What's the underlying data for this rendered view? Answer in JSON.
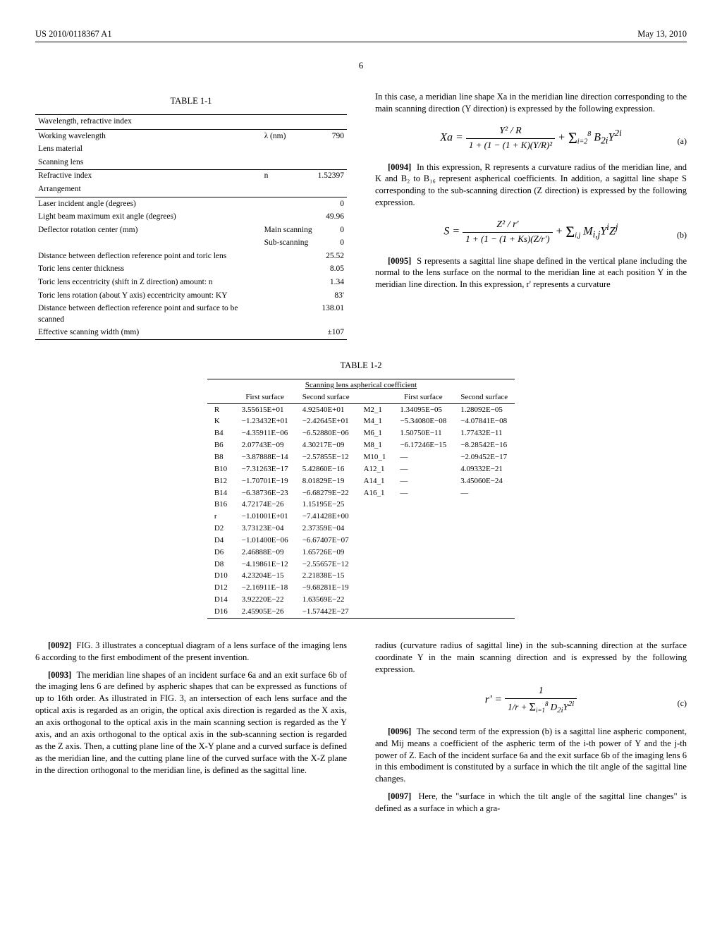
{
  "header": {
    "left": "US 2010/0118367 A1",
    "right": "May 13, 2010"
  },
  "page_number": "6",
  "table11": {
    "title": "TABLE 1-1",
    "section1_head": "Wavelength, refractive index",
    "rows1": [
      {
        "label": "Working wavelength",
        "sym": "λ (nm)",
        "val": "790"
      },
      {
        "label": "Lens material",
        "sym": "",
        "val": ""
      },
      {
        "label": "Scanning lens",
        "sym": "",
        "val": ""
      }
    ],
    "rows1b": [
      {
        "label": "Refractive index",
        "sym": "n",
        "val": "1.52397"
      }
    ],
    "section2_head": "Arrangement",
    "rows2": [
      {
        "label": "Laser incident angle (degrees)",
        "sym": "",
        "val": "0"
      },
      {
        "label": "Light beam maximum exit angle (degrees)",
        "sym": "",
        "val": "49.96"
      },
      {
        "label": "Deflector rotation center (mm)",
        "sym": "Main scanning",
        "val": "0"
      },
      {
        "label": "",
        "sym": "Sub-scanning",
        "val": "0"
      },
      {
        "label": "Distance between deflection reference point and toric lens",
        "sym": "",
        "val": "25.52"
      },
      {
        "label": "Toric lens center thickness",
        "sym": "",
        "val": "8.05"
      },
      {
        "label": "Toric lens eccentricity (shift in Z direction) amount: n",
        "sym": "",
        "val": "1.34"
      },
      {
        "label": "Toric lens rotation (about Y axis) eccentricity amount: KY",
        "sym": "",
        "val": "83'"
      },
      {
        "label": "Distance between deflection reference point and surface to be scanned",
        "sym": "",
        "val": "138.01"
      },
      {
        "label": "Effective scanning width (mm)",
        "sym": "",
        "val": "±107"
      }
    ]
  },
  "table12": {
    "title": "TABLE 1-2",
    "group_header": "Scanning lens aspherical coefficient",
    "col_headers": [
      "",
      "First surface",
      "Second surface",
      "",
      "First surface",
      "Second surface"
    ],
    "rows": [
      [
        "R",
        "3.55615E+01",
        "4.92540E+01",
        "M2_1",
        "1.34095E−05",
        "1.28092E−05"
      ],
      [
        "K",
        "−1.23432E+01",
        "−2.42645E+01",
        "M4_1",
        "−5.34080E−08",
        "−4.07841E−08"
      ],
      [
        "B4",
        "−4.35911E−06",
        "−6.52880E−06",
        "M6_1",
        "1.50750E−11",
        "1.77432E−11"
      ],
      [
        "B6",
        "2.07743E−09",
        "4.30217E−09",
        "M8_1",
        "−6.17246E−15",
        "−8.28542E−16"
      ],
      [
        "B8",
        "−3.87888E−14",
        "−2.57855E−12",
        "M10_1",
        "—",
        "−2.09452E−17"
      ],
      [
        "B10",
        "−7.31263E−17",
        "5.42860E−16",
        "A12_1",
        "—",
        "4.09332E−21"
      ],
      [
        "B12",
        "−1.70701E−19",
        "8.01829E−19",
        "A14_1",
        "—",
        "3.45060E−24"
      ],
      [
        "B14",
        "−6.38736E−23",
        "−6.68279E−22",
        "A16_1",
        "—",
        "—"
      ],
      [
        "B16",
        "4.72174E−26",
        "1.15195E−25",
        "",
        "",
        ""
      ],
      [
        "r",
        "−1.01001E+01",
        "−7.41428E+00",
        "",
        "",
        ""
      ],
      [
        "D2",
        "3.73123E−04",
        "2.37359E−04",
        "",
        "",
        ""
      ],
      [
        "D4",
        "−1.01400E−06",
        "−6.67407E−07",
        "",
        "",
        ""
      ],
      [
        "D6",
        "2.46888E−09",
        "1.65726E−09",
        "",
        "",
        ""
      ],
      [
        "D8",
        "−4.19861E−12",
        "−2.55657E−12",
        "",
        "",
        ""
      ],
      [
        "D10",
        "4.23204E−15",
        "2.21838E−15",
        "",
        "",
        ""
      ],
      [
        "D12",
        "−2.16911E−18",
        "−9.68281E−19",
        "",
        "",
        ""
      ],
      [
        "D14",
        "3.92220E−22",
        "1.63569E−22",
        "",
        "",
        ""
      ],
      [
        "D16",
        "2.45905E−26",
        "−1.57442E−27",
        "",
        "",
        ""
      ]
    ]
  },
  "paras": {
    "p0092": "FIG. 3 illustrates a conceptual diagram of a lens surface of the imaging lens 6 according to the first embodiment of the present invention.",
    "p0093": "The meridian line shapes of an incident surface 6a and an exit surface 6b of the imaging lens 6 are defined by aspheric shapes that can be expressed as functions of up to 16th order. As illustrated in FIG. 3, an intersection of each lens surface and the optical axis is regarded as an origin, the optical axis direction is regarded as the X axis, an axis orthogonal to the optical axis in the main scanning section is regarded as the Y axis, and an axis orthogonal to the optical axis in the sub-scanning section is regarded as the Z axis. Then, a cutting plane line of the X-Y plane and a curved surface is defined as the meridian line, and the cutting plane line of the curved surface with the X-Z plane in the direction orthogonal to the meridian line, is defined as the sagittal line.",
    "pre0094": "In this case, a meridian line shape Xa in the meridian line direction corresponding to the main scanning direction (Y direction) is expressed by the following expression.",
    "p0094": "In this expression, R represents a curvature radius of the meridian line, and K and B₂ to B₁₆ represent aspherical coefficients. In addition, a sagittal line shape S corresponding to the sub-scanning direction (Z direction) is expressed by the following expression.",
    "p0095": "S represents a sagittal line shape defined in the vertical plane including the normal to the lens surface on the normal to the meridian line at each position Y in the meridian line direction. In this expression, r' represents a curvature",
    "p0095b": "radius (curvature radius of sagittal line) in the sub-scanning direction at the surface coordinate Y in the main scanning direction and is expressed by the following expression.",
    "p0096": "The second term of the expression (b) is a sagittal line aspheric component, and Mij means a coefficient of the aspheric term of the i-th power of Y and the j-th power of Z. Each of the incident surface 6a and the exit surface 6b of the imaging lens 6 in this embodiment is constituted by a surface in which the tilt angle of the sagittal line changes.",
    "p0097": "Here, the \"surface in which the tilt angle of the sagittal line changes\" is defined as a surface in which a gra-"
  },
  "eq": {
    "a_tag": "(a)",
    "b_tag": "(b)",
    "c_tag": "(c)"
  },
  "labels": {
    "n0092": "[0092]",
    "n0093": "[0093]",
    "n0094": "[0094]",
    "n0095": "[0095]",
    "n0096": "[0096]",
    "n0097": "[0097]"
  }
}
